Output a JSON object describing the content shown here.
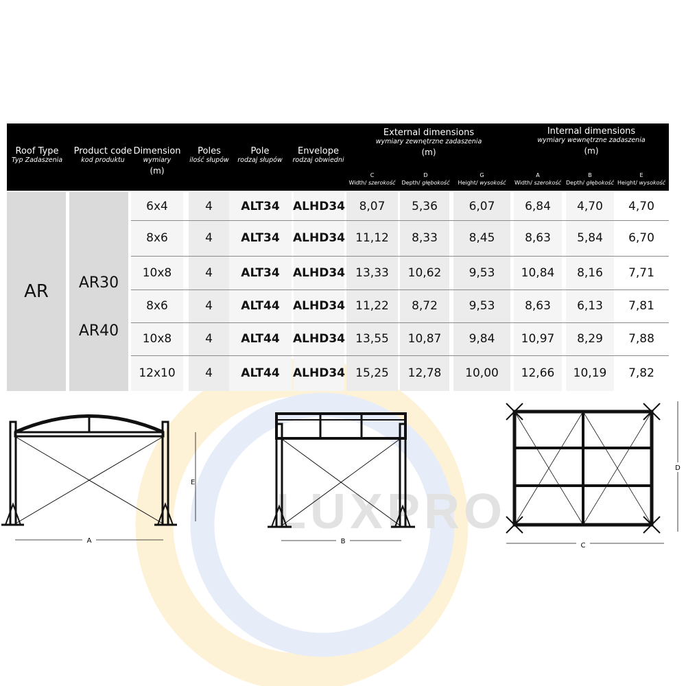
{
  "header": {
    "roof_type": {
      "title": "Roof Type",
      "subtitle": "Typ Zadaszenia"
    },
    "product_code": {
      "title": "Product code",
      "subtitle": "kod produktu"
    },
    "dimension": {
      "title": "Dimension",
      "subtitle": "wymiary",
      "unit": "(m)"
    },
    "poles": {
      "title": "Poles",
      "subtitle": "ilość słupów"
    },
    "pole": {
      "title": "Pole",
      "subtitle": "rodzaj słupów"
    },
    "envelope": {
      "title": "Envelope",
      "subtitle": "rodzaj obwiedni"
    },
    "external": {
      "title": "External dimensions",
      "subtitle": "wymiary zewnętrzne zadaszenia",
      "unit": "(m)",
      "cols": [
        {
          "letter": "C",
          "label": "Width/",
          "label_pl": "szerokość"
        },
        {
          "letter": "D",
          "label": "Depth/",
          "label_pl": "głębokość"
        },
        {
          "letter": "G",
          "label": "Height/",
          "label_pl": "wysokość"
        }
      ]
    },
    "internal": {
      "title": "Internal dimensions",
      "subtitle": "wymiary wewnętrzne zadaszenia",
      "unit": "(m)",
      "cols": [
        {
          "letter": "A",
          "label": "Width/",
          "label_pl": "szerokość"
        },
        {
          "letter": "B",
          "label": "Depth/",
          "label_pl": "głębokość"
        },
        {
          "letter": "E",
          "label": "Height/",
          "label_pl": "wysokość"
        }
      ]
    }
  },
  "roof_type": "AR",
  "product_groups": [
    "AR30",
    "AR40"
  ],
  "rows": [
    [
      "6x4",
      "4",
      "ALT34",
      "ALHD34",
      "8,07",
      "5,36",
      "6,07",
      "6,84",
      "4,70",
      "4,70"
    ],
    [
      "8x6",
      "4",
      "ALT34",
      "ALHD34",
      "11,12",
      "8,33",
      "8,45",
      "8,63",
      "5,84",
      "6,70"
    ],
    [
      "10x8",
      "4",
      "ALT34",
      "ALHD34",
      "13,33",
      "10,62",
      "9,53",
      "10,84",
      "8,16",
      "7,71"
    ],
    [
      "8x6",
      "4",
      "ALT44",
      "ALHD34",
      "11,22",
      "8,72",
      "9,53",
      "8,63",
      "6,13",
      "7,81"
    ],
    [
      "10x8",
      "4",
      "ALT44",
      "ALHD34",
      "13,55",
      "10,87",
      "9,84",
      "10,97",
      "8,29",
      "7,88"
    ],
    [
      "12x10",
      "4",
      "ALT44",
      "ALHD34",
      "15,25",
      "12,78",
      "10,00",
      "12,66",
      "10,19",
      "7,82"
    ]
  ],
  "drawings": {
    "front_label": "A",
    "height_label": "E",
    "side_label": "B",
    "top_width_label": "C",
    "top_depth_label": "D"
  },
  "watermark": "LUXPRO",
  "colors": {
    "header_bg": "#000000",
    "cell_dark": "#dadada",
    "cell_mid": "#ececec",
    "cell_light": "#f5f5f5",
    "wm_orange": "#fdf0d2",
    "wm_blue": "#e4ecf8"
  }
}
